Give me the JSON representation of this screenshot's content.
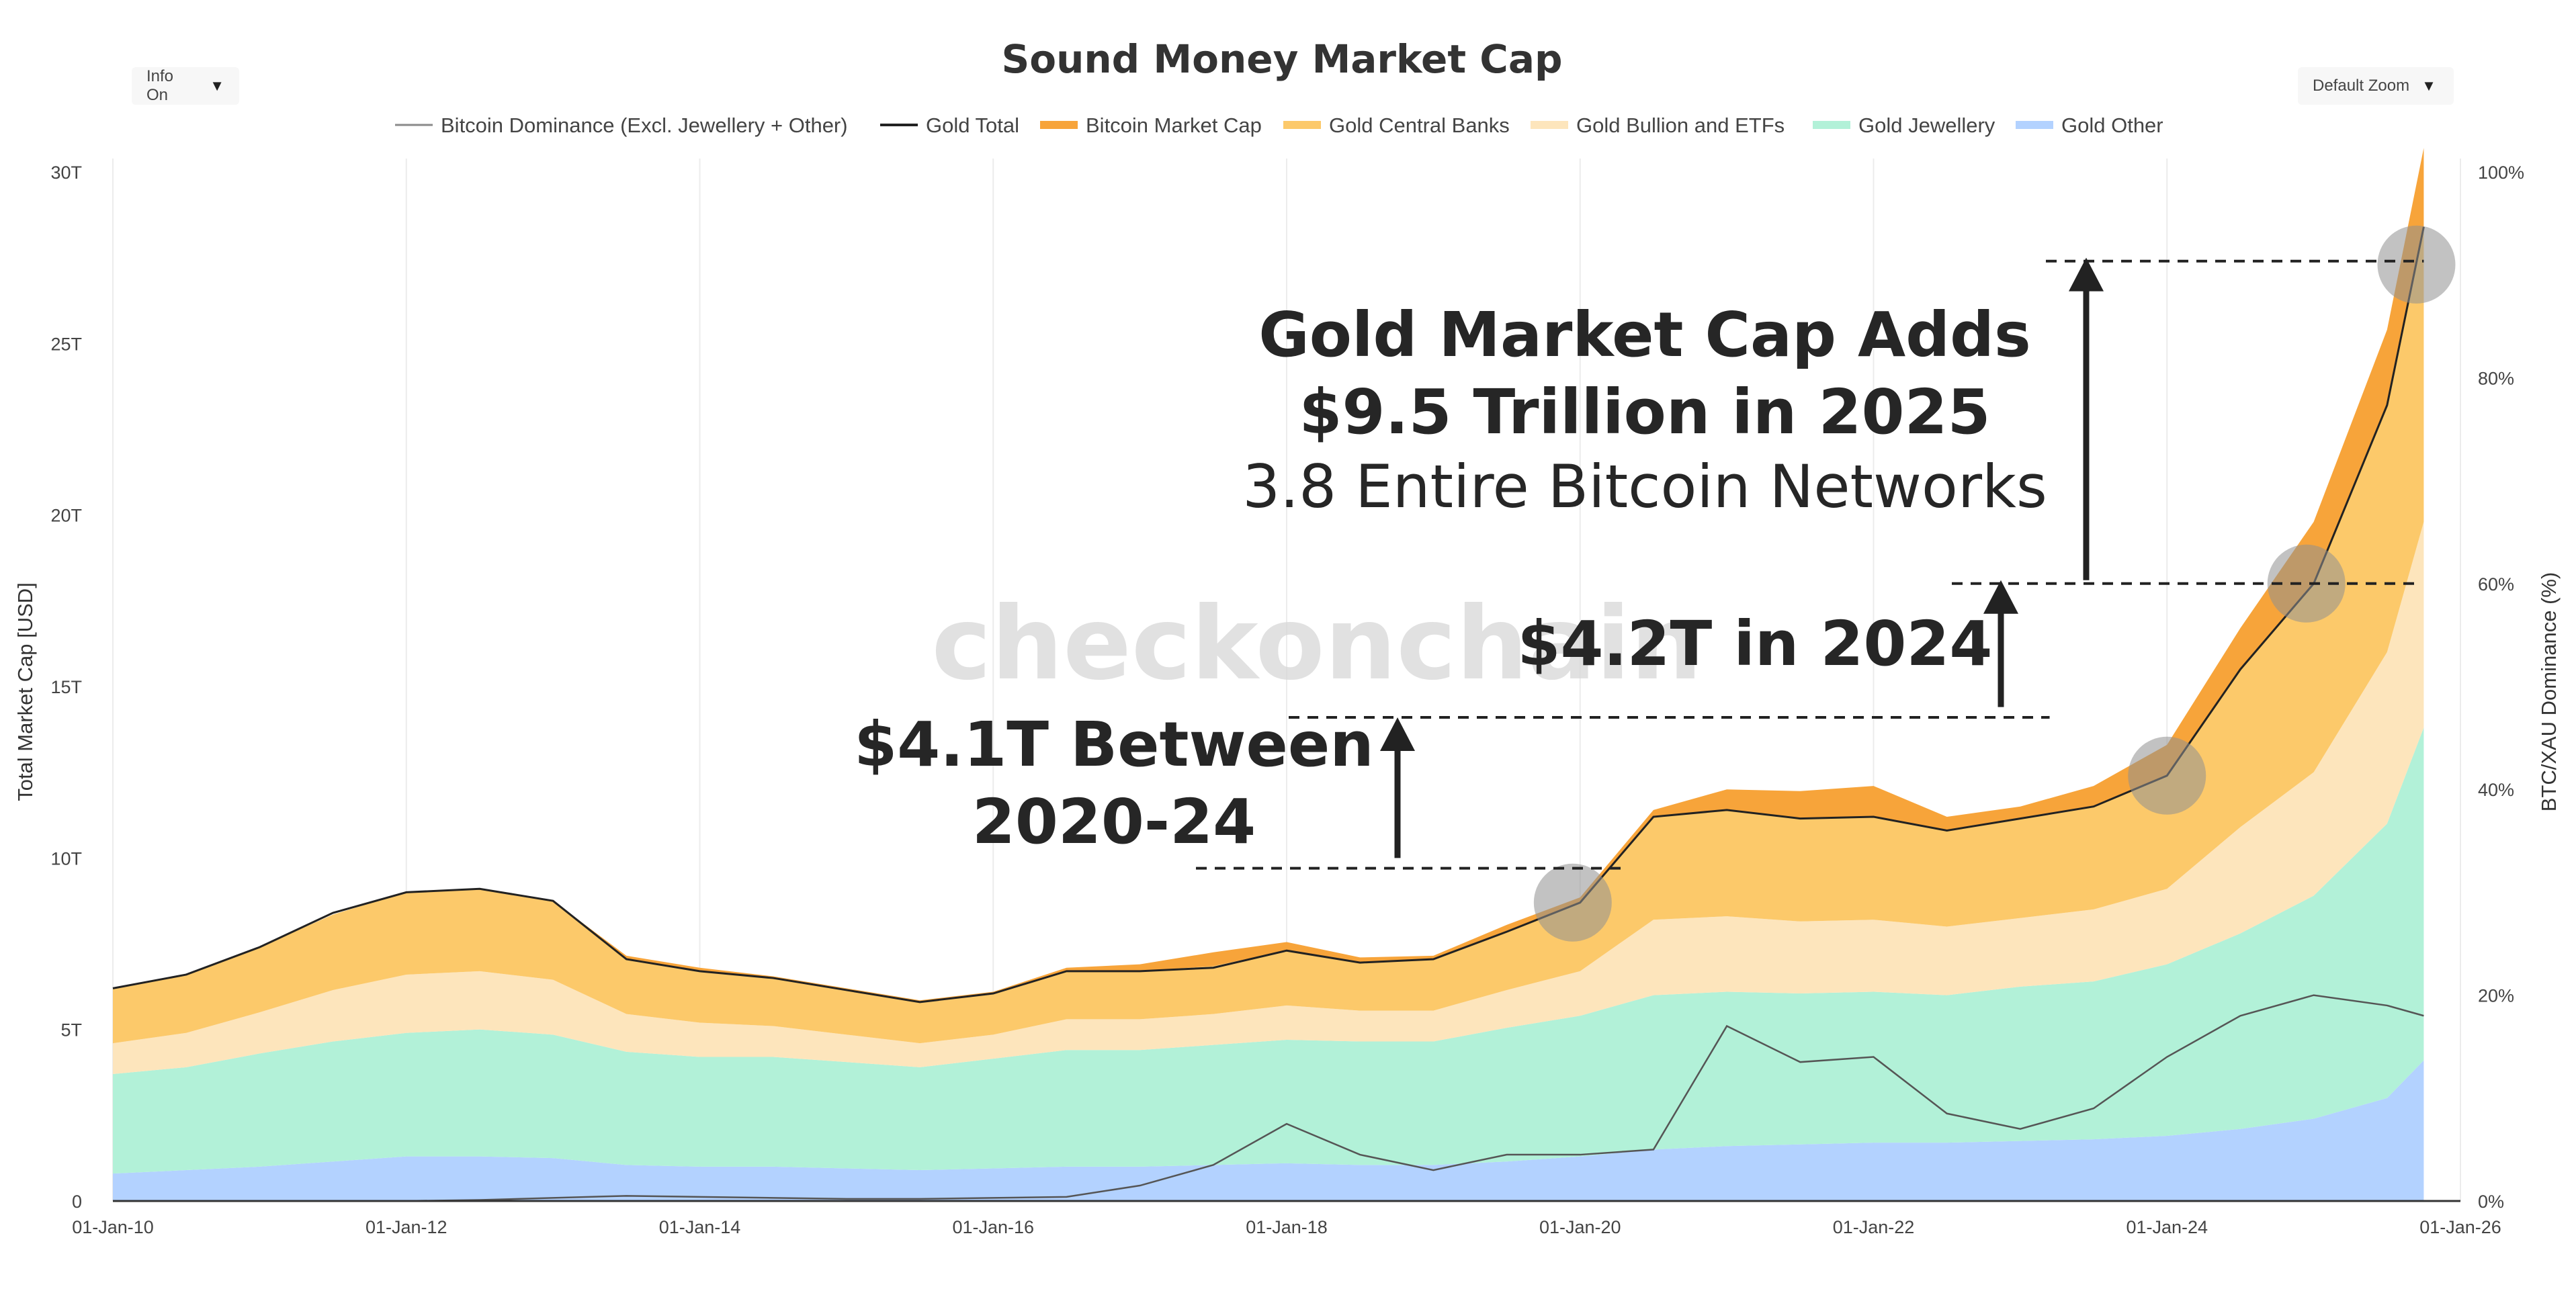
{
  "controls": {
    "info_label": "Info On",
    "zoom_label": "Default Zoom",
    "dropdown_glyph": "▼"
  },
  "chart_data": {
    "type": "area",
    "title": "Sound Money Market Cap",
    "ylabel": "Total Market Cap [USD]",
    "y2label": "BTC/XAU Dominance (%)",
    "ylim": [
      0,
      30
    ],
    "y2lim": [
      0,
      100
    ],
    "xlim": [
      "2010-01-01",
      "2026-01-01"
    ],
    "yticks": [
      "0",
      "5T",
      "10T",
      "15T",
      "20T",
      "25T",
      "30T"
    ],
    "y2ticks": [
      "0%",
      "20%",
      "40%",
      "60%",
      "80%",
      "100%"
    ],
    "xticks": [
      "01-Jan-10",
      "01-Jan-12",
      "01-Jan-14",
      "01-Jan-16",
      "01-Jan-18",
      "01-Jan-20",
      "01-Jan-22",
      "01-Jan-24",
      "01-Jan-26"
    ],
    "legend": [
      {
        "name": "Bitcoin Dominance (Excl. Jewellery + Other)",
        "kind": "line",
        "color": "#8a8a8a"
      },
      {
        "name": "Gold Total",
        "kind": "line",
        "color": "#222222"
      },
      {
        "name": "Bitcoin Market Cap",
        "kind": "area",
        "color": "#f7a43a"
      },
      {
        "name": "Gold Central Banks",
        "kind": "area",
        "color": "#fcc96a"
      },
      {
        "name": "Gold Bullion and ETFs",
        "kind": "area",
        "color": "#fde5bc"
      },
      {
        "name": "Gold Jewellery",
        "kind": "area",
        "color": "#b2f1d8"
      },
      {
        "name": "Gold Other",
        "kind": "area",
        "color": "#b3d2ff"
      }
    ],
    "x": [
      2010.0,
      2010.5,
      2011.0,
      2011.5,
      2012.0,
      2012.5,
      2013.0,
      2013.5,
      2014.0,
      2014.5,
      2015.0,
      2015.5,
      2016.0,
      2016.5,
      2017.0,
      2017.5,
      2018.0,
      2018.5,
      2019.0,
      2019.5,
      2020.0,
      2020.5,
      2021.0,
      2021.5,
      2022.0,
      2022.5,
      2023.0,
      2023.5,
      2024.0,
      2024.5,
      2025.0,
      2025.5,
      2025.75
    ],
    "series": [
      {
        "name": "Gold Other",
        "values": [
          0.8,
          0.9,
          1.0,
          1.15,
          1.3,
          1.3,
          1.25,
          1.05,
          1.0,
          1.0,
          0.95,
          0.9,
          0.95,
          1.0,
          1.0,
          1.05,
          1.1,
          1.05,
          1.05,
          1.15,
          1.3,
          1.5,
          1.6,
          1.65,
          1.7,
          1.7,
          1.75,
          1.8,
          1.9,
          2.1,
          2.4,
          3.0,
          4.1
        ]
      },
      {
        "name": "Gold Jewellery",
        "values": [
          2.9,
          3.0,
          3.3,
          3.5,
          3.6,
          3.7,
          3.6,
          3.3,
          3.2,
          3.2,
          3.1,
          3.0,
          3.2,
          3.4,
          3.4,
          3.5,
          3.6,
          3.6,
          3.6,
          3.9,
          4.1,
          4.5,
          4.5,
          4.4,
          4.4,
          4.3,
          4.5,
          4.6,
          5.0,
          5.7,
          6.5,
          8.0,
          9.7
        ]
      },
      {
        "name": "Gold Bullion and ETFs",
        "values": [
          0.9,
          1.0,
          1.2,
          1.5,
          1.7,
          1.7,
          1.6,
          1.1,
          1.0,
          0.9,
          0.8,
          0.7,
          0.7,
          0.9,
          0.9,
          0.9,
          1.0,
          0.9,
          0.9,
          1.1,
          1.3,
          2.2,
          2.2,
          2.1,
          2.1,
          2.0,
          2.0,
          2.1,
          2.2,
          3.1,
          3.6,
          5.0,
          6.0
        ]
      },
      {
        "name": "Gold Central Banks",
        "values": [
          1.6,
          1.7,
          1.9,
          2.2,
          2.4,
          2.4,
          2.3,
          1.6,
          1.5,
          1.4,
          1.3,
          1.2,
          1.2,
          1.4,
          1.4,
          1.4,
          1.6,
          1.4,
          1.5,
          1.7,
          2.0,
          3.0,
          3.1,
          3.0,
          3.0,
          2.8,
          2.9,
          3.0,
          3.3,
          4.6,
          5.5,
          7.2,
          8.6
        ]
      },
      {
        "name": "Bitcoin Market Cap",
        "values": [
          0.0,
          0.0,
          0.0,
          0.0,
          0.0,
          0.0,
          0.0,
          0.1,
          0.1,
          0.05,
          0.05,
          0.05,
          0.05,
          0.1,
          0.2,
          0.4,
          0.25,
          0.15,
          0.1,
          0.2,
          0.15,
          0.2,
          0.6,
          0.8,
          0.9,
          0.4,
          0.35,
          0.6,
          0.9,
          1.2,
          1.8,
          2.2,
          2.3
        ]
      },
      {
        "name": "Gold Total",
        "values": [
          6.2,
          6.6,
          7.4,
          8.4,
          9.0,
          9.1,
          8.75,
          7.05,
          6.7,
          6.5,
          6.15,
          5.8,
          6.05,
          6.7,
          6.7,
          6.8,
          7.3,
          6.95,
          7.05,
          7.85,
          8.7,
          11.2,
          11.4,
          11.15,
          11.2,
          10.8,
          11.15,
          11.5,
          12.4,
          15.5,
          18.0,
          23.2,
          28.4
        ]
      },
      {
        "name": "Bitcoin Dominance (Excl. Jewellery + Other)",
        "values": [
          0.0,
          0.0,
          0.0,
          0.0,
          0.0,
          0.1,
          0.3,
          0.5,
          0.4,
          0.3,
          0.2,
          0.2,
          0.3,
          0.4,
          1.5,
          3.5,
          7.5,
          4.5,
          3.0,
          4.5,
          4.5,
          5.0,
          17.0,
          13.5,
          14.0,
          8.5,
          7.0,
          9.0,
          14.0,
          18.0,
          20.0,
          19.0,
          18.0
        ]
      }
    ],
    "annotations": [
      {
        "lines": [
          "Gold Market Cap Adds",
          "$9.5 Trillion in 2025",
          "3.8 Entire Bitcoin Networks"
        ]
      },
      {
        "lines": [
          "$4.2T in 2024"
        ]
      },
      {
        "lines": [
          "$4.1T Between",
          "2020-24"
        ]
      }
    ],
    "watermark": "checkonchain",
    "grid": true,
    "legend_position": "top-center"
  }
}
